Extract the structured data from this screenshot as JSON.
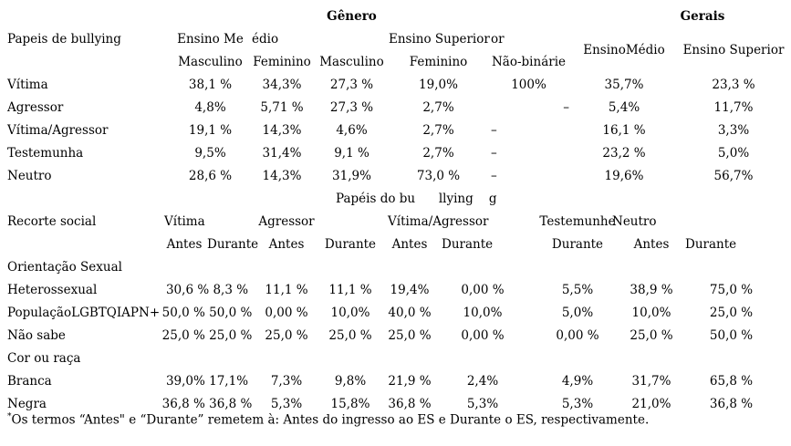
{
  "table1": {
    "genero": "Gênero",
    "gerais": "Gerais",
    "header": {
      "papeis": "Papeis de bullying",
      "ensino_medio_part1": "Ensino Me",
      "ensino_medio_part2": "édio",
      "ensino_superior_part1": "Ensino Superior",
      "ensino_superior_part2": "or",
      "sub": [
        "Masculino",
        "Feminino",
        "Masculino",
        "Feminino",
        "Não-binárie"
      ],
      "gerais_sub": [
        "EnsinoMédio",
        "Ensino Superior"
      ]
    },
    "rows": [
      {
        "label": "Vítima",
        "values": [
          "38,1 %",
          "34,3%",
          "27,3 %",
          "19,0%",
          "100%",
          "35,7%",
          "23,3 %"
        ]
      },
      {
        "label": "Agressor",
        "values": [
          "4,8%",
          "5,71 %",
          "27,3 %",
          "2,7%",
          {
            "t": "–",
            "cls": "ar"
          },
          "5,4%",
          "11,7%"
        ]
      },
      {
        "label": "Vítima/Agressor",
        "values": [
          "19,1 %",
          "14,3%",
          "4,6%",
          "2,7%",
          {
            "t": "–",
            "cls": "al"
          },
          "16,1 %",
          "3,3%"
        ]
      },
      {
        "label": "Testemunha",
        "values": [
          "9,5%",
          "31,4%",
          "9,1 %",
          "2,7%",
          {
            "t": "–",
            "cls": "al"
          },
          "23,2 %",
          "5,0%"
        ]
      },
      {
        "label": "Neutro",
        "values": [
          "28,6 %",
          "14,3%",
          "31,9%",
          "73,0 %",
          {
            "t": "–",
            "cls": "al"
          },
          "19,6%",
          "56,7%"
        ]
      }
    ]
  },
  "table2": {
    "title": "Papéis do bu      llying    g",
    "header": {
      "label": "Recorte social",
      "groups": [
        "Vítima",
        "Agressor",
        "Vítima/Agressor",
        "Testemunhe",
        "Neutro"
      ],
      "sub": [
        "Antes",
        "Durante",
        "Antes",
        "Durante",
        "Antes",
        "Durante",
        "Durante",
        "Antes",
        "Durante"
      ]
    },
    "sections": [
      {
        "category": "Orientação Sexual",
        "rows": [
          {
            "label": "Heterossexual",
            "values": [
              "30,6 % 8,3 %",
              "11,1 %",
              "11,1 %",
              "19,4%",
              "0,00 %",
              "5,5%",
              "38,9 %",
              "75,0 %"
            ]
          },
          {
            "label": "PopulaçãoLGBTQIAPN+",
            "values": [
              "50,0 % 50,0 %",
              "0,00 %",
              "10,0%",
              "40,0 %",
              "10,0%",
              "5,0%",
              "10,0%",
              "25,0 %"
            ]
          },
          {
            "label": "Não sabe",
            "values": [
              "25,0 % 25,0 %",
              "25,0 %",
              "25,0 %",
              "25,0 %",
              "0,00 %",
              "0,00 %",
              "25,0 %",
              "50,0 %"
            ]
          }
        ]
      },
      {
        "category": "Cor ou raça",
        "rows": [
          {
            "label": "Branca",
            "values": [
              "39,0% 17,1%",
              "7,3%",
              "9,8%",
              "21,9 %",
              "2,4%",
              "4,9%",
              "31,7%",
              "65,8 %"
            ]
          },
          {
            "label": "Negra",
            "values": [
              "36,8 % 36,8 %",
              "5,3%",
              "15,8%",
              "36,8 %",
              "5,3%",
              "5,3%",
              "21,0%",
              "36,8 %"
            ]
          }
        ]
      }
    ]
  },
  "footnote": {
    "marker": "*",
    "text": "Os termos “Antes\" e “Durante” remetem à: Antes do ingresso ao ES e Durante o ES, respectivamente."
  }
}
